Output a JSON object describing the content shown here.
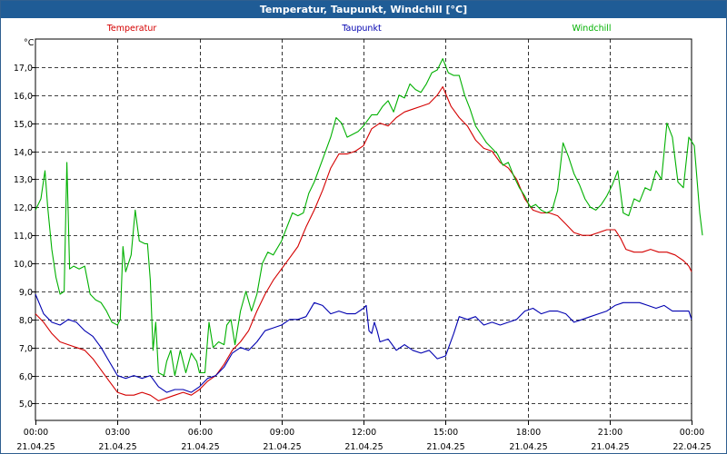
{
  "window": {
    "title": "Temperatur, Taupunkt, Windchill [°C]"
  },
  "chart_data": {
    "type": "line",
    "title": "Temperatur, Taupunkt, Windchill [°C]",
    "ylabel": "°C",
    "xlabel": "",
    "ylim": [
      4.4,
      18.0
    ],
    "grid": true,
    "legend_placement": "top",
    "y_ticks": [
      "5,0",
      "6,0",
      "7,0",
      "8,0",
      "9,0",
      "10,0",
      "11,0",
      "12,0",
      "13,0",
      "14,0",
      "15,0",
      "16,0",
      "17,0"
    ],
    "y_tick_values": [
      5,
      6,
      7,
      8,
      9,
      10,
      11,
      12,
      13,
      14,
      15,
      16,
      17
    ],
    "x_tick_hours": [
      0,
      3,
      6,
      9,
      12,
      15,
      18,
      21,
      24
    ],
    "x_tick_times": [
      "00:00",
      "03:00",
      "06:00",
      "09:00",
      "12:00",
      "15:00",
      "18:00",
      "21:00",
      "00:00"
    ],
    "x_tick_dates": [
      "21.04.25",
      "21.04.25",
      "21.04.25",
      "21.04.25",
      "21.04.25",
      "21.04.25",
      "21.04.25",
      "21.04.25",
      "22.04.25"
    ],
    "series": [
      {
        "name": "Temperatur",
        "color": "#d40000",
        "points": [
          [
            0,
            8.2
          ],
          [
            0.3,
            7.9
          ],
          [
            0.6,
            7.5
          ],
          [
            0.9,
            7.2
          ],
          [
            1.2,
            7.1
          ],
          [
            1.5,
            7.0
          ],
          [
            1.8,
            6.9
          ],
          [
            2.1,
            6.6
          ],
          [
            2.4,
            6.2
          ],
          [
            2.7,
            5.8
          ],
          [
            3.0,
            5.4
          ],
          [
            3.3,
            5.3
          ],
          [
            3.6,
            5.3
          ],
          [
            3.9,
            5.4
          ],
          [
            4.2,
            5.3
          ],
          [
            4.5,
            5.1
          ],
          [
            4.8,
            5.2
          ],
          [
            5.1,
            5.3
          ],
          [
            5.4,
            5.4
          ],
          [
            5.7,
            5.3
          ],
          [
            6.0,
            5.5
          ],
          [
            6.3,
            5.8
          ],
          [
            6.6,
            6.0
          ],
          [
            6.9,
            6.4
          ],
          [
            7.2,
            6.9
          ],
          [
            7.5,
            7.2
          ],
          [
            7.8,
            7.6
          ],
          [
            8.1,
            8.3
          ],
          [
            8.4,
            8.9
          ],
          [
            8.7,
            9.4
          ],
          [
            9.0,
            9.8
          ],
          [
            9.3,
            10.2
          ],
          [
            9.6,
            10.6
          ],
          [
            9.9,
            11.3
          ],
          [
            10.2,
            11.9
          ],
          [
            10.5,
            12.6
          ],
          [
            10.8,
            13.4
          ],
          [
            11.1,
            13.9
          ],
          [
            11.4,
            13.9
          ],
          [
            11.7,
            14.0
          ],
          [
            12.0,
            14.2
          ],
          [
            12.3,
            14.8
          ],
          [
            12.6,
            15.0
          ],
          [
            12.9,
            14.9
          ],
          [
            13.2,
            15.2
          ],
          [
            13.5,
            15.4
          ],
          [
            13.8,
            15.5
          ],
          [
            14.1,
            15.6
          ],
          [
            14.4,
            15.7
          ],
          [
            14.7,
            16.0
          ],
          [
            14.9,
            16.3
          ],
          [
            15.2,
            15.6
          ],
          [
            15.5,
            15.2
          ],
          [
            15.8,
            14.9
          ],
          [
            16.1,
            14.4
          ],
          [
            16.4,
            14.1
          ],
          [
            16.7,
            14.0
          ],
          [
            17.0,
            13.6
          ],
          [
            17.3,
            13.4
          ],
          [
            17.6,
            13.0
          ],
          [
            17.9,
            12.3
          ],
          [
            18.2,
            11.9
          ],
          [
            18.5,
            11.8
          ],
          [
            18.8,
            11.8
          ],
          [
            19.1,
            11.7
          ],
          [
            19.4,
            11.4
          ],
          [
            19.7,
            11.1
          ],
          [
            20.0,
            11.0
          ],
          [
            20.3,
            11.0
          ],
          [
            20.6,
            11.1
          ],
          [
            20.9,
            11.2
          ],
          [
            21.2,
            11.2
          ],
          [
            21.4,
            10.9
          ],
          [
            21.6,
            10.5
          ],
          [
            21.9,
            10.4
          ],
          [
            22.2,
            10.4
          ],
          [
            22.5,
            10.5
          ],
          [
            22.8,
            10.4
          ],
          [
            23.1,
            10.4
          ],
          [
            23.4,
            10.3
          ],
          [
            23.7,
            10.1
          ],
          [
            23.9,
            9.9
          ],
          [
            24.0,
            9.7
          ]
        ]
      },
      {
        "name": "Taupunkt",
        "color": "#0000b0",
        "points": [
          [
            0,
            8.9
          ],
          [
            0.3,
            8.2
          ],
          [
            0.6,
            7.9
          ],
          [
            0.9,
            7.8
          ],
          [
            1.2,
            8.0
          ],
          [
            1.5,
            7.9
          ],
          [
            1.8,
            7.6
          ],
          [
            2.1,
            7.4
          ],
          [
            2.4,
            7.0
          ],
          [
            2.7,
            6.5
          ],
          [
            3.0,
            6.0
          ],
          [
            3.3,
            5.9
          ],
          [
            3.6,
            6.0
          ],
          [
            3.9,
            5.9
          ],
          [
            4.2,
            6.0
          ],
          [
            4.5,
            5.6
          ],
          [
            4.8,
            5.4
          ],
          [
            5.1,
            5.5
          ],
          [
            5.4,
            5.5
          ],
          [
            5.7,
            5.4
          ],
          [
            6.0,
            5.6
          ],
          [
            6.3,
            5.9
          ],
          [
            6.6,
            6.0
          ],
          [
            6.9,
            6.3
          ],
          [
            7.2,
            6.8
          ],
          [
            7.5,
            7.0
          ],
          [
            7.8,
            6.9
          ],
          [
            8.1,
            7.2
          ],
          [
            8.4,
            7.6
          ],
          [
            8.7,
            7.7
          ],
          [
            9.0,
            7.8
          ],
          [
            9.3,
            8.0
          ],
          [
            9.6,
            8.0
          ],
          [
            9.9,
            8.1
          ],
          [
            10.2,
            8.6
          ],
          [
            10.5,
            8.5
          ],
          [
            10.8,
            8.2
          ],
          [
            11.1,
            8.3
          ],
          [
            11.4,
            8.2
          ],
          [
            11.7,
            8.2
          ],
          [
            12.0,
            8.4
          ],
          [
            12.1,
            8.5
          ],
          [
            12.2,
            7.6
          ],
          [
            12.3,
            7.5
          ],
          [
            12.4,
            7.9
          ],
          [
            12.5,
            7.6
          ],
          [
            12.6,
            7.2
          ],
          [
            12.9,
            7.3
          ],
          [
            13.2,
            6.9
          ],
          [
            13.5,
            7.1
          ],
          [
            13.8,
            6.9
          ],
          [
            14.1,
            6.8
          ],
          [
            14.4,
            6.9
          ],
          [
            14.7,
            6.6
          ],
          [
            15.0,
            6.7
          ],
          [
            15.3,
            7.5
          ],
          [
            15.5,
            8.1
          ],
          [
            15.8,
            8.0
          ],
          [
            16.1,
            8.1
          ],
          [
            16.4,
            7.8
          ],
          [
            16.7,
            7.9
          ],
          [
            17.0,
            7.8
          ],
          [
            17.3,
            7.9
          ],
          [
            17.6,
            8.0
          ],
          [
            17.9,
            8.3
          ],
          [
            18.2,
            8.4
          ],
          [
            18.5,
            8.2
          ],
          [
            18.8,
            8.3
          ],
          [
            19.1,
            8.3
          ],
          [
            19.4,
            8.2
          ],
          [
            19.7,
            7.9
          ],
          [
            20.0,
            8.0
          ],
          [
            20.3,
            8.1
          ],
          [
            20.6,
            8.2
          ],
          [
            20.9,
            8.3
          ],
          [
            21.2,
            8.5
          ],
          [
            21.5,
            8.6
          ],
          [
            21.8,
            8.6
          ],
          [
            22.1,
            8.6
          ],
          [
            22.4,
            8.5
          ],
          [
            22.7,
            8.4
          ],
          [
            23.0,
            8.5
          ],
          [
            23.3,
            8.3
          ],
          [
            23.6,
            8.3
          ],
          [
            23.9,
            8.3
          ],
          [
            24.0,
            8.0
          ]
        ]
      },
      {
        "name": "Windchill",
        "color": "#00b000",
        "points": [
          [
            0,
            11.9
          ],
          [
            0.2,
            12.3
          ],
          [
            0.35,
            13.3
          ],
          [
            0.45,
            12.0
          ],
          [
            0.6,
            10.5
          ],
          [
            0.75,
            9.5
          ],
          [
            0.9,
            8.9
          ],
          [
            1.05,
            9.0
          ],
          [
            1.15,
            13.6
          ],
          [
            1.25,
            9.8
          ],
          [
            1.4,
            9.9
          ],
          [
            1.6,
            9.8
          ],
          [
            1.8,
            9.9
          ],
          [
            2.0,
            8.9
          ],
          [
            2.2,
            8.7
          ],
          [
            2.4,
            8.6
          ],
          [
            2.6,
            8.3
          ],
          [
            2.8,
            7.9
          ],
          [
            3.0,
            7.8
          ],
          [
            3.1,
            8.0
          ],
          [
            3.2,
            10.6
          ],
          [
            3.3,
            9.7
          ],
          [
            3.5,
            10.3
          ],
          [
            3.65,
            11.9
          ],
          [
            3.8,
            10.8
          ],
          [
            4.0,
            10.7
          ],
          [
            4.1,
            10.7
          ],
          [
            4.2,
            9.4
          ],
          [
            4.3,
            6.9
          ],
          [
            4.4,
            7.9
          ],
          [
            4.5,
            6.1
          ],
          [
            4.7,
            6.0
          ],
          [
            4.8,
            6.5
          ],
          [
            4.95,
            6.9
          ],
          [
            5.1,
            6.0
          ],
          [
            5.3,
            6.9
          ],
          [
            5.5,
            6.1
          ],
          [
            5.7,
            6.8
          ],
          [
            5.9,
            6.5
          ],
          [
            6.0,
            6.1
          ],
          [
            6.2,
            6.1
          ],
          [
            6.35,
            7.9
          ],
          [
            6.5,
            7.0
          ],
          [
            6.7,
            7.2
          ],
          [
            6.9,
            7.1
          ],
          [
            7.0,
            7.8
          ],
          [
            7.15,
            8.0
          ],
          [
            7.3,
            7.1
          ],
          [
            7.5,
            8.3
          ],
          [
            7.7,
            9.0
          ],
          [
            7.9,
            8.3
          ],
          [
            8.1,
            8.9
          ],
          [
            8.3,
            10.0
          ],
          [
            8.5,
            10.4
          ],
          [
            8.7,
            10.3
          ],
          [
            9.0,
            10.8
          ],
          [
            9.2,
            11.3
          ],
          [
            9.4,
            11.8
          ],
          [
            9.6,
            11.7
          ],
          [
            9.8,
            11.8
          ],
          [
            10.0,
            12.5
          ],
          [
            10.2,
            12.9
          ],
          [
            10.5,
            13.7
          ],
          [
            10.8,
            14.5
          ],
          [
            11.0,
            15.2
          ],
          [
            11.2,
            15.0
          ],
          [
            11.4,
            14.5
          ],
          [
            11.6,
            14.6
          ],
          [
            11.8,
            14.7
          ],
          [
            12.0,
            14.9
          ],
          [
            12.3,
            15.3
          ],
          [
            12.5,
            15.3
          ],
          [
            12.7,
            15.6
          ],
          [
            12.9,
            15.8
          ],
          [
            13.1,
            15.4
          ],
          [
            13.3,
            16.0
          ],
          [
            13.5,
            15.9
          ],
          [
            13.7,
            16.4
          ],
          [
            13.9,
            16.2
          ],
          [
            14.1,
            16.1
          ],
          [
            14.3,
            16.4
          ],
          [
            14.5,
            16.8
          ],
          [
            14.7,
            16.9
          ],
          [
            14.9,
            17.3
          ],
          [
            15.1,
            16.8
          ],
          [
            15.3,
            16.7
          ],
          [
            15.5,
            16.7
          ],
          [
            15.7,
            16.0
          ],
          [
            15.9,
            15.5
          ],
          [
            16.1,
            14.9
          ],
          [
            16.3,
            14.6
          ],
          [
            16.5,
            14.3
          ],
          [
            16.7,
            14.1
          ],
          [
            16.9,
            13.9
          ],
          [
            17.1,
            13.5
          ],
          [
            17.3,
            13.6
          ],
          [
            17.5,
            13.1
          ],
          [
            17.7,
            12.7
          ],
          [
            17.9,
            12.4
          ],
          [
            18.1,
            12.0
          ],
          [
            18.3,
            12.1
          ],
          [
            18.5,
            11.9
          ],
          [
            18.7,
            11.8
          ],
          [
            18.9,
            11.9
          ],
          [
            19.1,
            12.6
          ],
          [
            19.3,
            14.3
          ],
          [
            19.5,
            13.8
          ],
          [
            19.7,
            13.2
          ],
          [
            19.9,
            12.8
          ],
          [
            20.1,
            12.3
          ],
          [
            20.3,
            12.0
          ],
          [
            20.5,
            11.9
          ],
          [
            20.7,
            12.1
          ],
          [
            20.9,
            12.4
          ],
          [
            21.1,
            12.8
          ],
          [
            21.3,
            13.3
          ],
          [
            21.5,
            11.8
          ],
          [
            21.7,
            11.7
          ],
          [
            21.9,
            12.3
          ],
          [
            22.1,
            12.2
          ],
          [
            22.3,
            12.7
          ],
          [
            22.5,
            12.6
          ],
          [
            22.7,
            13.3
          ],
          [
            22.9,
            13.0
          ],
          [
            23.1,
            15.0
          ],
          [
            23.3,
            14.5
          ],
          [
            23.5,
            12.9
          ],
          [
            23.7,
            12.7
          ],
          [
            23.9,
            14.5
          ],
          [
            24.1,
            14.2
          ],
          [
            24.3,
            11.8
          ],
          [
            24.4,
            11.0
          ]
        ]
      }
    ]
  }
}
